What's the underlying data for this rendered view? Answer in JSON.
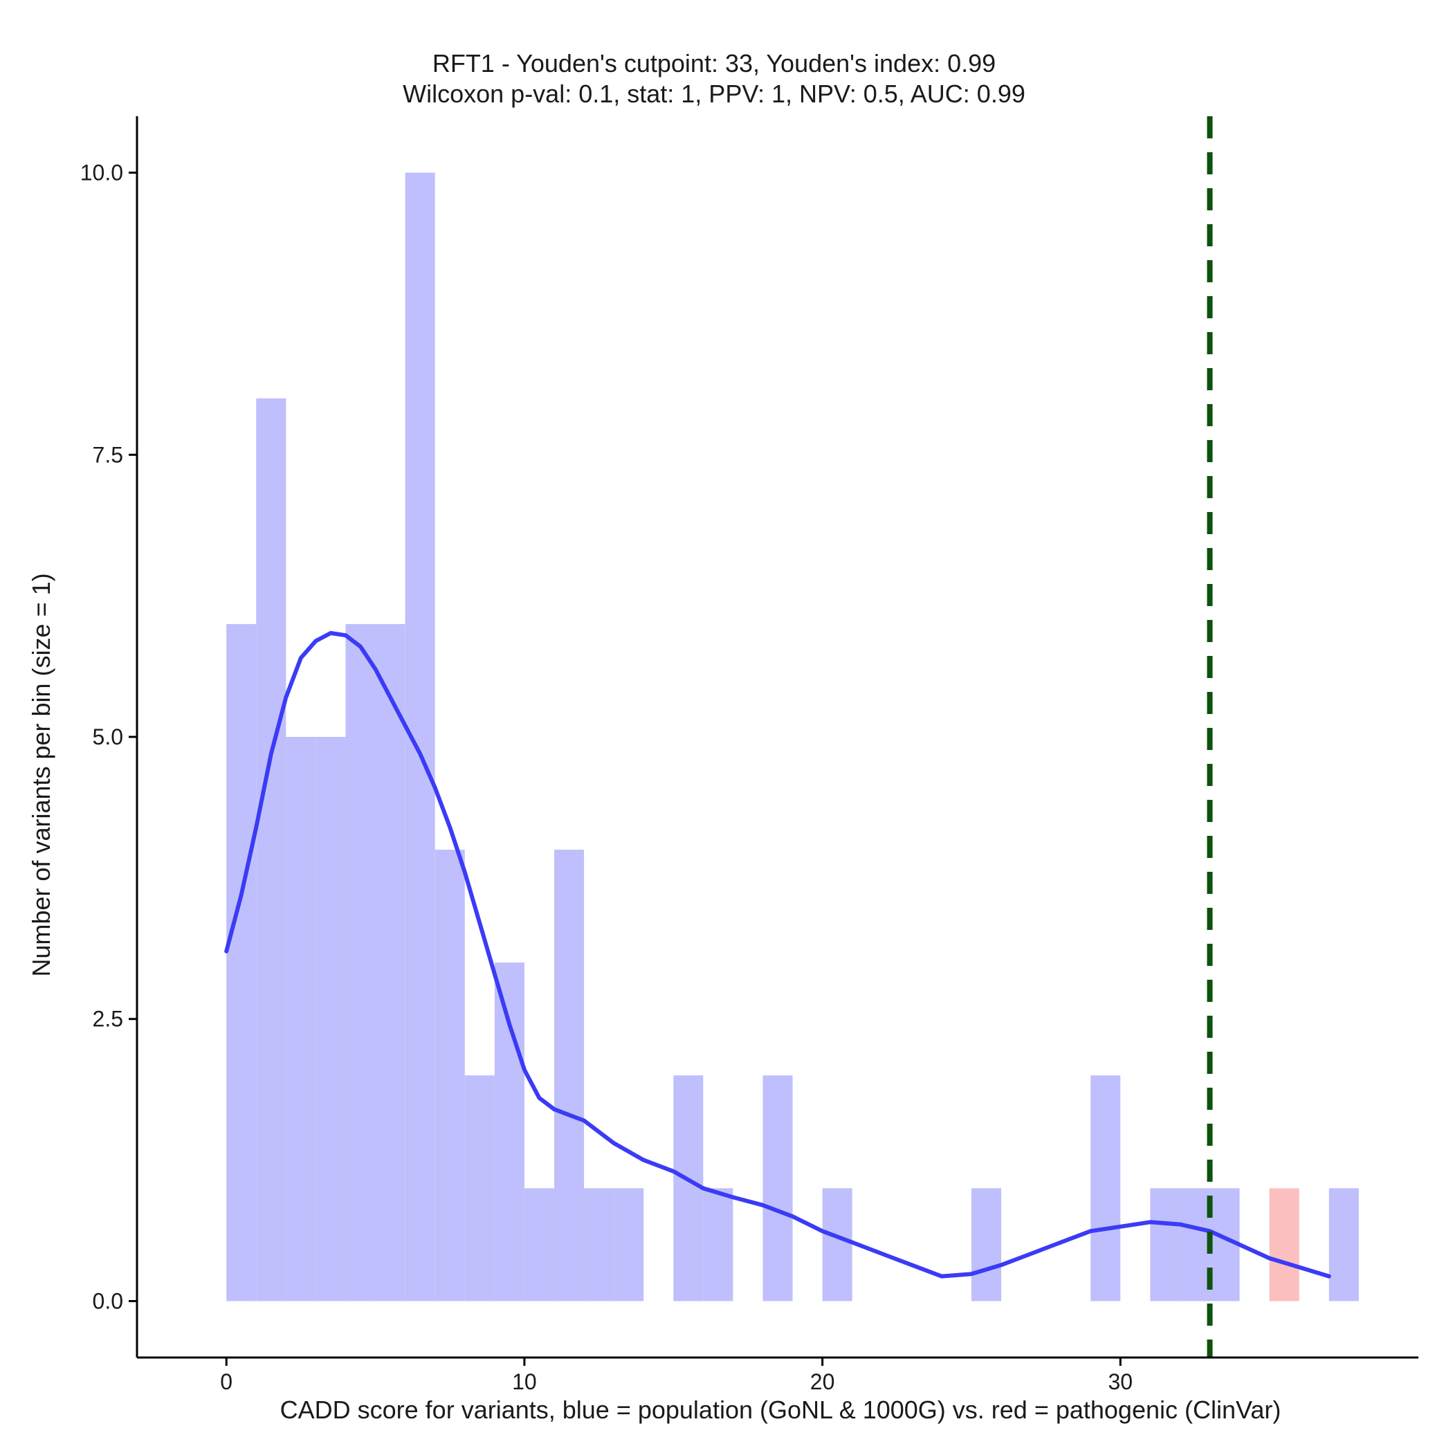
{
  "chart_data": {
    "type": "bar",
    "title_lines": [
      "RFT1 - Youden's cutpoint: 33, Youden's index: 0.99",
      "Wilcoxon p-val: 0.1, stat: 1, PPV: 1, NPV: 0.5, AUC: 0.99"
    ],
    "xlabel": "CADD score for variants, blue = population (GoNL & 1000G) vs. red = pathogenic (ClinVar)",
    "ylabel": "Number of variants per bin (size = 1)",
    "xlim": [
      -3,
      40
    ],
    "ylim": [
      -0.5,
      10.5
    ],
    "xticks": [
      0,
      10,
      20,
      30
    ],
    "yticks": [
      0,
      2.5,
      5,
      7.5,
      10
    ],
    "ytick_labels": [
      "0.0",
      "2.5",
      "5.0",
      "7.5",
      "10.0"
    ],
    "bin_width": 1,
    "grid": false,
    "colors": {
      "population_fill": "#bfbffd",
      "pathogenic_fill": "#fcbfc0",
      "density_line": "#3b3bf6",
      "cutpoint_line": "#0d520d"
    },
    "series": [
      {
        "color": "blue",
        "bins": [
          {
            "x0": 0,
            "count": 6
          },
          {
            "x0": 1,
            "count": 8
          },
          {
            "x0": 2,
            "count": 5
          },
          {
            "x0": 3,
            "count": 5
          },
          {
            "x0": 4,
            "count": 6
          },
          {
            "x0": 5,
            "count": 6
          },
          {
            "x0": 6,
            "count": 10
          },
          {
            "x0": 7,
            "count": 4
          },
          {
            "x0": 8,
            "count": 2
          },
          {
            "x0": 9,
            "count": 3
          },
          {
            "x0": 10,
            "count": 1
          },
          {
            "x0": 11,
            "count": 4
          },
          {
            "x0": 12,
            "count": 1
          },
          {
            "x0": 13,
            "count": 1
          },
          {
            "x0": 15,
            "count": 2
          },
          {
            "x0": 16,
            "count": 1
          },
          {
            "x0": 18,
            "count": 2
          },
          {
            "x0": 20,
            "count": 1
          },
          {
            "x0": 25,
            "count": 1
          },
          {
            "x0": 29,
            "count": 2
          },
          {
            "x0": 31,
            "count": 1
          },
          {
            "x0": 32,
            "count": 1
          },
          {
            "x0": 33,
            "count": 1
          },
          {
            "x0": 37,
            "count": 1
          }
        ]
      },
      {
        "color": "red",
        "bins": [
          {
            "x0": 35,
            "count": 1
          }
        ]
      }
    ],
    "density_curve": {
      "x": [
        0,
        0.5,
        1,
        1.5,
        2,
        2.5,
        3,
        3.5,
        4,
        4.5,
        5,
        5.5,
        6,
        6.5,
        7,
        7.5,
        8,
        8.5,
        9,
        9.5,
        10,
        10.5,
        11,
        11.5,
        12,
        13,
        14,
        15,
        16,
        17,
        18,
        19,
        20,
        21,
        22,
        23,
        24,
        25,
        26,
        27,
        28,
        29,
        30,
        31,
        32,
        33,
        34,
        35,
        36,
        37
      ],
      "y": [
        3.1,
        3.6,
        4.2,
        4.85,
        5.35,
        5.7,
        5.85,
        5.92,
        5.9,
        5.8,
        5.6,
        5.35,
        5.1,
        4.85,
        4.55,
        4.2,
        3.8,
        3.35,
        2.9,
        2.45,
        2.05,
        1.8,
        1.7,
        1.65,
        1.6,
        1.4,
        1.25,
        1.15,
        1.0,
        0.92,
        0.85,
        0.75,
        0.62,
        0.52,
        0.42,
        0.32,
        0.22,
        0.24,
        0.32,
        0.42,
        0.52,
        0.62,
        0.66,
        0.7,
        0.68,
        0.62,
        0.5,
        0.38,
        0.3,
        0.22
      ]
    },
    "cutpoint": 33
  }
}
